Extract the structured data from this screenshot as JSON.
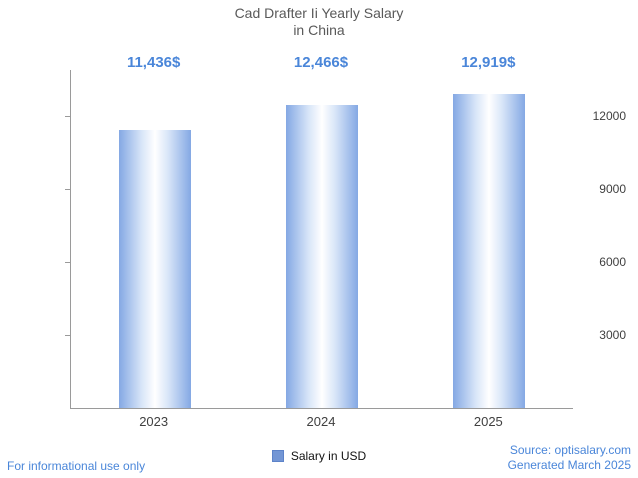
{
  "title": {
    "line1": "Cad Drafter Ii Yearly Salary",
    "line2": "in China"
  },
  "chart_data": {
    "type": "bar",
    "title": "Cad Drafter Ii Yearly Salary in China",
    "categories": [
      "2023",
      "2024",
      "2025"
    ],
    "values": [
      11436,
      12466,
      12919
    ],
    "value_labels": [
      "11,436$",
      "12,466$",
      "12,919$"
    ],
    "xlabel": "",
    "ylabel": "",
    "ylim": [
      0,
      13900
    ],
    "yticks": [
      3000,
      6000,
      9000,
      12000
    ],
    "grid": false,
    "legend": [
      "Salary in USD"
    ],
    "legend_position": "bottom"
  },
  "legend": {
    "label": "Salary in USD"
  },
  "footer": {
    "left": "For informational use only",
    "source": "Source: optisalary.com",
    "generated": "Generated March 2025"
  },
  "colors": {
    "accent_text": "#4a86d9",
    "bar_edge": "#84a8e4",
    "axis": "#9a9a9a",
    "title_text": "#595959"
  }
}
